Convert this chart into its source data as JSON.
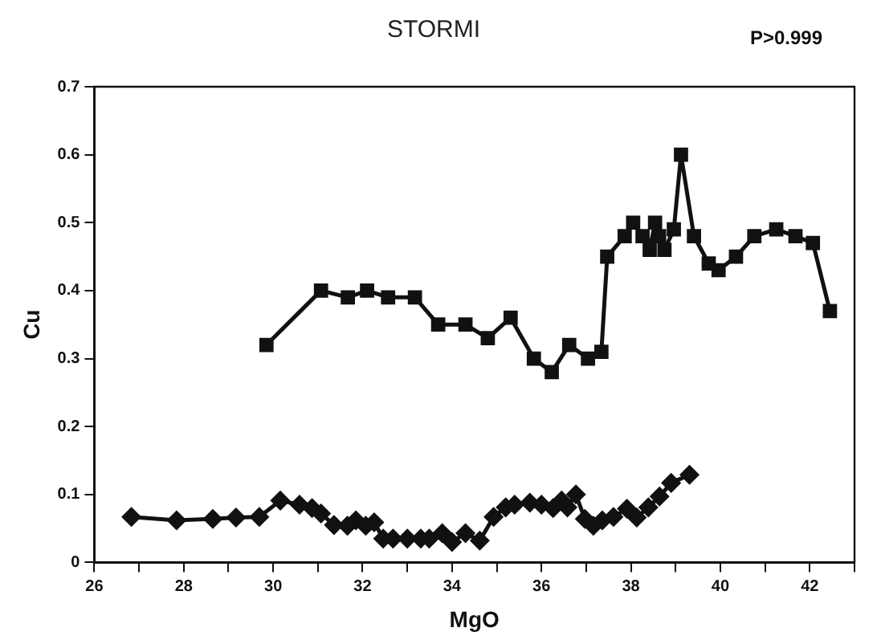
{
  "chart_data": {
    "type": "line",
    "title": "STORMI",
    "xlabel": "MgO",
    "ylabel": "Cu",
    "annotations": [
      "P>0.999"
    ],
    "xlim": [
      26,
      43
    ],
    "xticks": [
      26,
      {
        "value": 27,
        "label": null
      },
      28,
      {
        "value": 29,
        "label": null
      },
      30,
      {
        "value": 31,
        "label": null
      },
      32,
      {
        "value": 33,
        "label": null
      },
      34,
      {
        "value": 35,
        "label": null
      },
      36,
      {
        "value": 37,
        "label": null
      },
      38,
      {
        "value": 39,
        "label": null
      },
      40,
      {
        "value": 41,
        "label": null
      },
      42,
      {
        "value": 43,
        "label": null
      }
    ],
    "ylim": [
      0,
      0.7
    ],
    "yticks": [
      0,
      0.1,
      0.2,
      0.3,
      0.4,
      0.5,
      0.6,
      0.7
    ],
    "grid": false,
    "legend": false,
    "line_style": "solid",
    "series": [
      {
        "color": "#111111",
        "marker": "square",
        "x": [
          29.85,
          31.07,
          31.67,
          32.1,
          32.57,
          33.17,
          33.69,
          34.3,
          34.8,
          35.31,
          35.83,
          36.23,
          36.62,
          37.04,
          37.34,
          37.47,
          37.86,
          38.05,
          38.26,
          38.42,
          38.54,
          38.63,
          38.75,
          38.96,
          39.12,
          39.41,
          39.74,
          39.96,
          40.35,
          40.76,
          41.25,
          41.68,
          42.07,
          42.45
        ],
        "values": [
          0.32,
          0.4,
          0.39,
          0.4,
          0.39,
          0.39,
          0.35,
          0.35,
          0.33,
          0.36,
          0.3,
          0.28,
          0.32,
          0.3,
          0.31,
          0.45,
          0.48,
          0.5,
          0.48,
          0.46,
          0.5,
          0.48,
          0.46,
          0.49,
          0.6,
          0.48,
          0.44,
          0.43,
          0.45,
          0.48,
          0.49,
          0.48,
          0.47,
          0.37
        ]
      },
      {
        "color": "#111111",
        "marker": "diamond",
        "x": [
          26.83,
          27.84,
          28.65,
          29.17,
          29.69,
          30.16,
          30.59,
          30.87,
          31.07,
          31.36,
          31.66,
          31.85,
          32.07,
          32.26,
          32.46,
          32.68,
          33,
          33.3,
          33.49,
          33.78,
          34,
          34.3,
          34.62,
          34.93,
          35.2,
          35.4,
          35.74,
          36,
          36.26,
          36.45,
          36.58,
          36.77,
          36.97,
          37.16,
          37.36,
          37.61,
          37.91,
          38.13,
          38.39,
          38.64,
          38.9,
          39.31
        ],
        "values": [
          0.067,
          0.062,
          0.064,
          0.066,
          0.067,
          0.091,
          0.085,
          0.08,
          0.072,
          0.055,
          0.054,
          0.062,
          0.054,
          0.059,
          0.035,
          0.035,
          0.035,
          0.035,
          0.035,
          0.043,
          0.03,
          0.043,
          0.032,
          0.067,
          0.081,
          0.085,
          0.088,
          0.085,
          0.08,
          0.091,
          0.081,
          0.1,
          0.064,
          0.054,
          0.062,
          0.067,
          0.079,
          0.066,
          0.081,
          0.097,
          0.117,
          0.129
        ]
      }
    ]
  }
}
